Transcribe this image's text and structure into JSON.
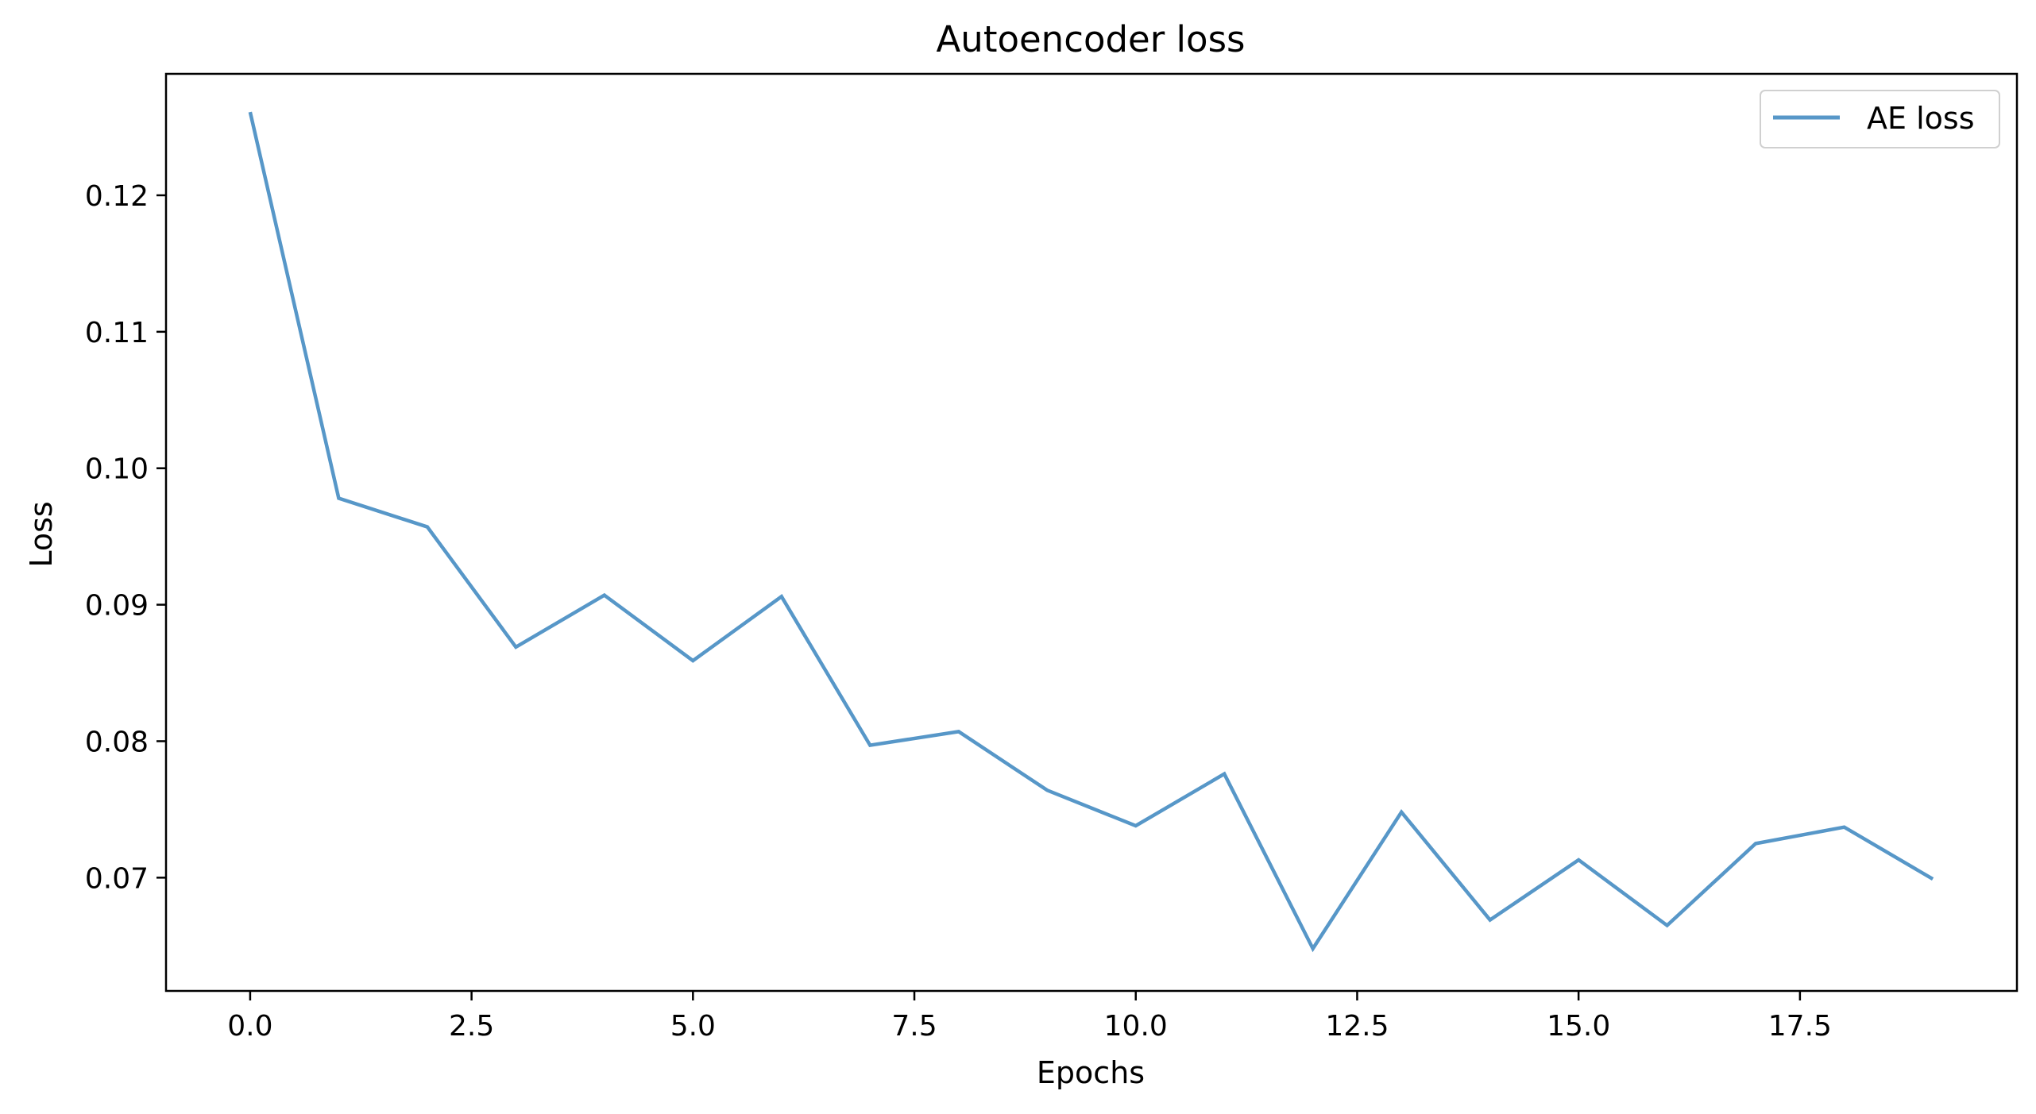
{
  "chart_data": {
    "type": "line",
    "title": "Autoencoder loss",
    "xlabel": "Epochs",
    "ylabel": "Loss",
    "xlim": [
      -0.95,
      19.95
    ],
    "ylim": [
      0.0617,
      0.1289
    ],
    "xticks": [
      0.0,
      2.5,
      5.0,
      7.5,
      10.0,
      12.5,
      15.0,
      17.5
    ],
    "xtick_labels": [
      "0.0",
      "2.5",
      "5.0",
      "7.5",
      "10.0",
      "12.5",
      "15.0",
      "17.5"
    ],
    "yticks": [
      0.07,
      0.08,
      0.09,
      0.1,
      0.11,
      0.12
    ],
    "ytick_labels": [
      "0.07",
      "0.08",
      "0.09",
      "0.10",
      "0.11",
      "0.12"
    ],
    "grid": false,
    "legend_position": "top-right",
    "series": [
      {
        "name": "AE loss",
        "color": "#5797c8",
        "x": [
          0,
          1,
          2,
          3,
          4,
          5,
          6,
          7,
          8,
          9,
          10,
          11,
          12,
          13,
          14,
          15,
          16,
          17,
          18,
          19
        ],
        "y": [
          0.1261,
          0.0978,
          0.0957,
          0.0869,
          0.0907,
          0.0859,
          0.0906,
          0.0797,
          0.0807,
          0.0764,
          0.0738,
          0.0776,
          0.0648,
          0.0748,
          0.0669,
          0.0713,
          0.0665,
          0.0725,
          0.0737,
          0.0699
        ]
      }
    ]
  }
}
